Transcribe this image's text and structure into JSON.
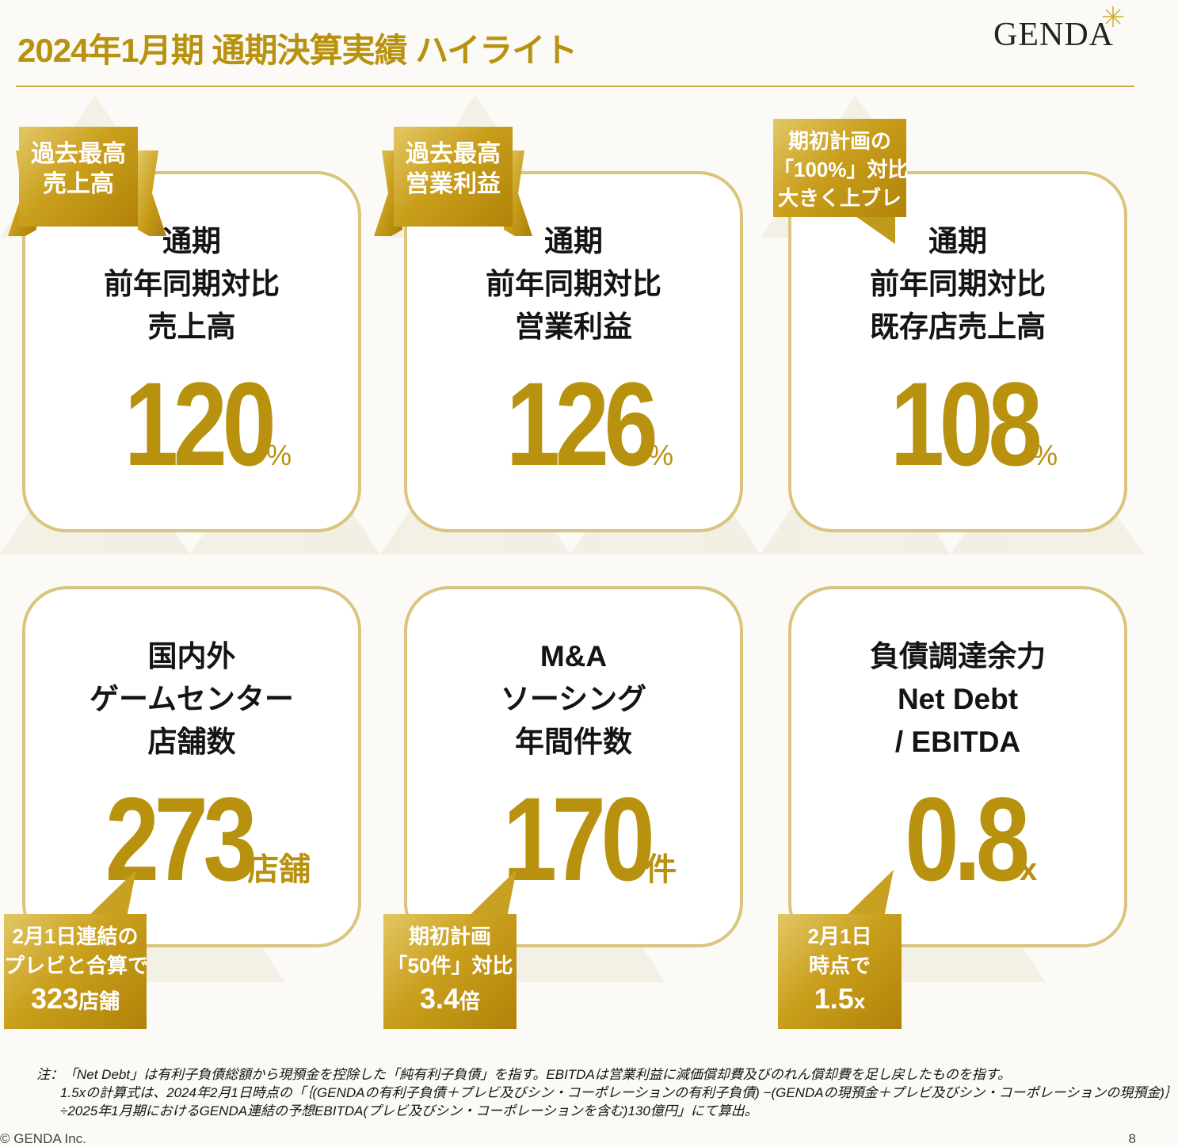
{
  "header": {
    "title": "2024年1月期 通期決算実績 ハイライト",
    "logo": "GENDA"
  },
  "cards": [
    {
      "label_lines": [
        "通期",
        "前年同期対比",
        "売上高"
      ],
      "value": "120",
      "unit": "%",
      "badge_lines": [
        "過去最高",
        "売上高"
      ]
    },
    {
      "label_lines": [
        "通期",
        "前年同期対比",
        "営業利益"
      ],
      "value": "126",
      "unit": "%",
      "badge_lines": [
        "過去最高",
        "営業利益"
      ]
    },
    {
      "label_lines": [
        "通期",
        "前年同期対比",
        "既存店売上高"
      ],
      "value": "108",
      "unit": "%",
      "badge_lines": [
        "期初計画の",
        "「100%」対比",
        "大きく上ブレ"
      ]
    },
    {
      "label_lines": [
        "国内外",
        "ゲームセンター",
        "店舗数"
      ],
      "value": "273",
      "unit": "店舗",
      "bubble": {
        "line1": "2月1日連結の",
        "line2": "プレビと合算で",
        "big_num": "323",
        "big_unit": "店舗"
      }
    },
    {
      "label_lines": [
        "M&A",
        "ソーシング",
        "年間件数"
      ],
      "value": "170",
      "unit": "件",
      "bubble": {
        "line1": "期初計画",
        "line2": "「50件」対比",
        "big_num": "3.4",
        "big_unit": "倍"
      }
    },
    {
      "label_lines": [
        "負債調達余力",
        "Net Debt",
        "/ EBITDA"
      ],
      "value": "0.8",
      "unit": "x",
      "bubble": {
        "line1": "2月1日",
        "line2": "時点で",
        "big_num": "1.5",
        "big_unit": "x"
      }
    }
  ],
  "notes": [
    "注：「Net Debt」は有利子負債総額から現預金を控除した「純有利子負債」を指す。EBITDAは営業利益に減価償却費及びのれん償却費を足し戻したものを指す。",
    "1.5xの計算式は、2024年2月1日時点の「｛(GENDAの有利子負債＋プレビ及びシン・コーポレーションの有利子負債) −(GENDAの現預金＋プレビ及びシン・コーポレーションの現預金)｝",
    "÷2025年1月期におけるGENDA連結の予想EBITDA(プレビ及びシン・コーポレーションを含む)130億円」にて算出。"
  ],
  "footer": {
    "copyright": "© GENDA Inc.",
    "page_number": "8"
  },
  "colors": {
    "gold": "#b8920f",
    "card_border": "#d9c57e",
    "badge_gradient": [
      "#e3c766",
      "#c99f1c",
      "#b18208"
    ]
  }
}
